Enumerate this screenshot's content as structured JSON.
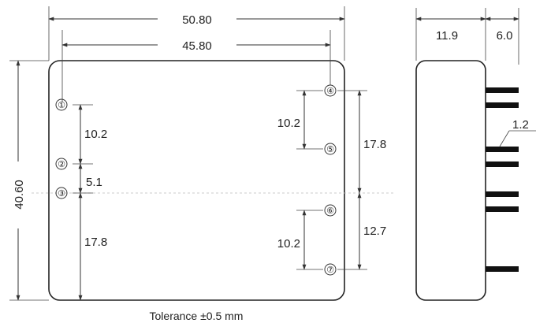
{
  "dimensions": {
    "overall_width": "50.80",
    "pin_span_width": "45.80",
    "overall_height": "40.60",
    "depth": "11.9",
    "pin_length": "6.0",
    "pin_size": "1.2",
    "left_1_2": "10.2",
    "left_2_3": "5.1",
    "left_3_bottom": "17.8",
    "right_4_5": "10.2",
    "right_4_center": "17.8",
    "right_center_7": "12.7",
    "right_6_7": "10.2"
  },
  "pins": [
    {
      "label": "①"
    },
    {
      "label": "②"
    },
    {
      "label": "③"
    },
    {
      "label": "④"
    },
    {
      "label": "⑤"
    },
    {
      "label": "⑥"
    },
    {
      "label": "⑦"
    }
  ],
  "tolerance": "Tolerance ±0.5 mm",
  "colors": {
    "line": "#333333",
    "pin": "#111111",
    "centerline": "#bbbbbb"
  }
}
